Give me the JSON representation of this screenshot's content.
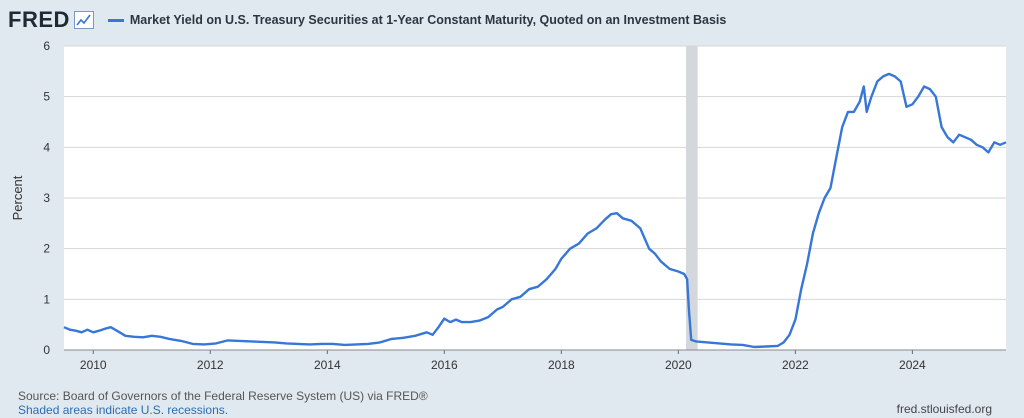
{
  "header": {
    "logo_text": "FRED",
    "logo_icon": "line-chart-icon",
    "series_label": "Market Yield on U.S. Treasury Securities at 1-Year Constant Maturity, Quoted on an Investment Basis"
  },
  "footer": {
    "source": "Source: Board of Governors of the Federal Reserve System (US) via FRED®",
    "shaded": "Shaded areas indicate U.S. recessions.",
    "site": "fred.stlouisfed.org"
  },
  "colors": {
    "line": "#3777d8",
    "plot_bg": "#ffffff",
    "page_bg": "#e1e9f0",
    "grid": "#d6d6d6",
    "recession": "#d4d8dc"
  },
  "chart_data": {
    "type": "line",
    "title": "Market Yield on U.S. Treasury Securities at 1-Year Constant Maturity, Quoted on an Investment Basis",
    "xlabel": "",
    "ylabel": "Percent",
    "xlim": [
      2009.5,
      2025.6
    ],
    "ylim": [
      0,
      6
    ],
    "grid": true,
    "x_ticks": [
      2010,
      2012,
      2014,
      2016,
      2018,
      2020,
      2022,
      2024
    ],
    "x_tick_labels": [
      "2010",
      "2012",
      "2014",
      "2016",
      "2018",
      "2020",
      "2022",
      "2024"
    ],
    "y_ticks": [
      0,
      1,
      2,
      3,
      4,
      5,
      6
    ],
    "y_tick_labels": [
      "0",
      "1",
      "2",
      "3",
      "4",
      "5",
      "6"
    ],
    "recessions": [
      [
        2020.13,
        2020.33
      ]
    ],
    "series": [
      {
        "x": [
          2009.5,
          2009.6,
          2009.7,
          2009.8,
          2009.9,
          2010.0,
          2010.1,
          2010.2,
          2010.3,
          2010.45,
          2010.55,
          2010.7,
          2010.85,
          2011.0,
          2011.15,
          2011.3,
          2011.5,
          2011.7,
          2011.9,
          2012.1,
          2012.3,
          2012.5,
          2012.7,
          2012.9,
          2013.1,
          2013.3,
          2013.5,
          2013.7,
          2013.9,
          2014.1,
          2014.3,
          2014.5,
          2014.7,
          2014.9,
          2015.1,
          2015.3,
          2015.5,
          2015.7,
          2015.8,
          2015.9,
          2016.0,
          2016.1,
          2016.2,
          2016.3,
          2016.45,
          2016.6,
          2016.75,
          2016.9,
          2017.0,
          2017.15,
          2017.3,
          2017.45,
          2017.6,
          2017.75,
          2017.9,
          2018.0,
          2018.15,
          2018.3,
          2018.45,
          2018.6,
          2018.75,
          2018.85,
          2018.95,
          2019.05,
          2019.2,
          2019.35,
          2019.5,
          2019.6,
          2019.7,
          2019.85,
          2020.0,
          2020.1,
          2020.15,
          2020.18,
          2020.22,
          2020.3,
          2020.5,
          2020.7,
          2020.9,
          2021.1,
          2021.3,
          2021.5,
          2021.7,
          2021.8,
          2021.9,
          2022.0,
          2022.1,
          2022.2,
          2022.3,
          2022.4,
          2022.5,
          2022.6,
          2022.7,
          2022.8,
          2022.9,
          2023.0,
          2023.1,
          2023.17,
          2023.22,
          2023.3,
          2023.4,
          2023.5,
          2023.6,
          2023.7,
          2023.8,
          2023.9,
          2024.0,
          2024.1,
          2024.2,
          2024.3,
          2024.4,
          2024.5,
          2024.6,
          2024.7,
          2024.8,
          2024.9,
          2025.0,
          2025.1,
          2025.2,
          2025.3,
          2025.4,
          2025.5,
          2025.6
        ],
        "y": [
          0.45,
          0.4,
          0.38,
          0.35,
          0.4,
          0.35,
          0.38,
          0.42,
          0.45,
          0.35,
          0.28,
          0.26,
          0.25,
          0.28,
          0.26,
          0.22,
          0.18,
          0.12,
          0.11,
          0.13,
          0.19,
          0.18,
          0.17,
          0.16,
          0.15,
          0.13,
          0.12,
          0.11,
          0.12,
          0.12,
          0.1,
          0.11,
          0.12,
          0.15,
          0.22,
          0.24,
          0.28,
          0.35,
          0.3,
          0.45,
          0.62,
          0.55,
          0.6,
          0.55,
          0.55,
          0.58,
          0.65,
          0.8,
          0.85,
          1.0,
          1.05,
          1.2,
          1.25,
          1.4,
          1.6,
          1.8,
          2.0,
          2.1,
          2.3,
          2.4,
          2.58,
          2.68,
          2.7,
          2.6,
          2.55,
          2.4,
          2.0,
          1.9,
          1.75,
          1.6,
          1.55,
          1.5,
          1.4,
          0.8,
          0.2,
          0.17,
          0.15,
          0.13,
          0.11,
          0.1,
          0.06,
          0.07,
          0.08,
          0.15,
          0.3,
          0.6,
          1.2,
          1.7,
          2.3,
          2.7,
          3.0,
          3.2,
          3.8,
          4.4,
          4.7,
          4.7,
          4.9,
          5.2,
          4.7,
          5.0,
          5.3,
          5.4,
          5.45,
          5.4,
          5.3,
          4.8,
          4.85,
          5.0,
          5.2,
          5.15,
          5.0,
          4.4,
          4.2,
          4.1,
          4.25,
          4.2,
          4.15,
          4.05,
          4.0,
          3.9,
          4.1,
          4.05,
          4.1
        ]
      }
    ]
  }
}
